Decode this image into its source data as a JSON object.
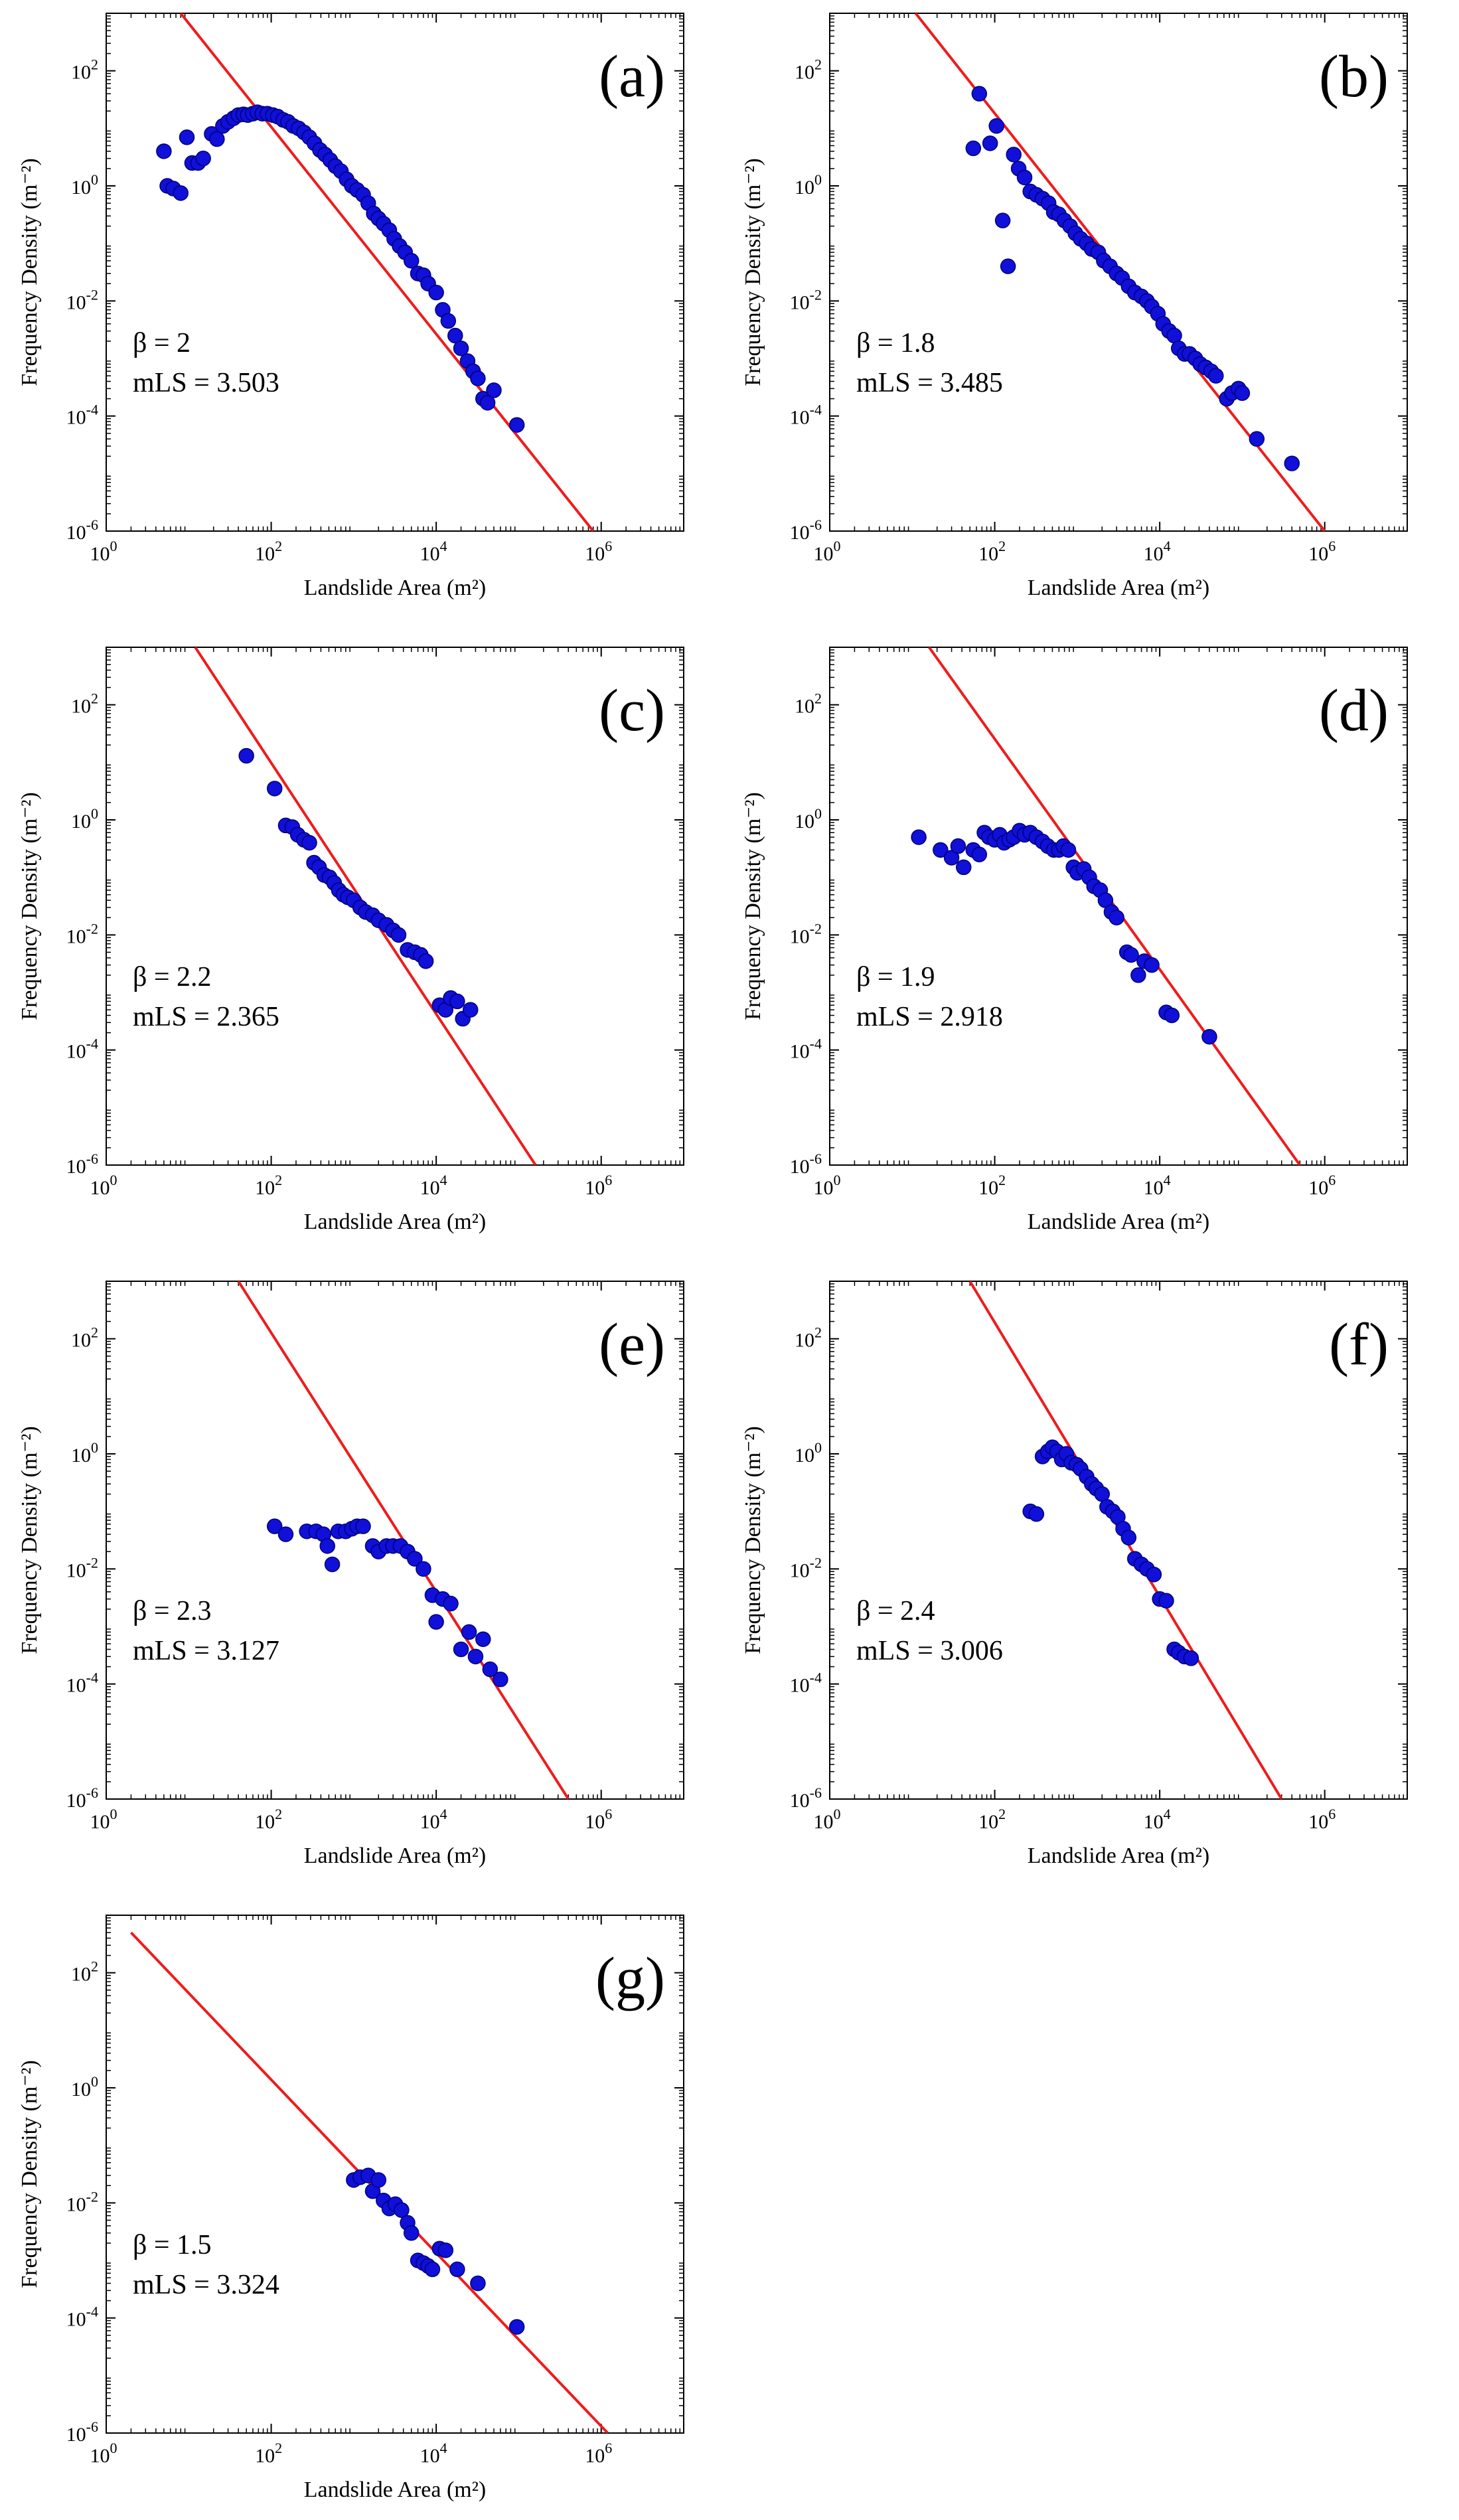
{
  "chart_data": [
    {
      "type": "scatter",
      "panel_label": "(a)",
      "xlabel": "Landslide Area (m²)",
      "ylabel": "Frequency Density (m⁻²)",
      "xscale": "log",
      "yscale": "log",
      "xlim": [
        1,
        10000000
      ],
      "ylim": [
        1e-06,
        1000
      ],
      "x_ticks": [
        "10^0",
        "10^2",
        "10^4",
        "10^6"
      ],
      "y_ticks": [
        "10^-6",
        "10^-4",
        "10^-2",
        "10^0",
        "10^2"
      ],
      "annotations": [
        "β =  2",
        "mLS = 3.503"
      ],
      "fit_line": {
        "x": [
          8,
          800000
        ],
        "y": [
          1000,
          1e-06
        ]
      },
      "points": [
        [
          5,
          4
        ],
        [
          5.5,
          1.0
        ],
        [
          6.5,
          0.9
        ],
        [
          8,
          0.75
        ],
        [
          9.5,
          7
        ],
        [
          11,
          2.5
        ],
        [
          13,
          2.5
        ],
        [
          15,
          3
        ],
        [
          19,
          8
        ],
        [
          22,
          6.5
        ],
        [
          26,
          11
        ],
        [
          30,
          13
        ],
        [
          35,
          15
        ],
        [
          40,
          17
        ],
        [
          46,
          17.5
        ],
        [
          52,
          17
        ],
        [
          60,
          18
        ],
        [
          68,
          19
        ],
        [
          78,
          18
        ],
        [
          90,
          18
        ],
        [
          105,
          17
        ],
        [
          120,
          16
        ],
        [
          140,
          14
        ],
        [
          160,
          13
        ],
        [
          185,
          11
        ],
        [
          215,
          10
        ],
        [
          250,
          8.5
        ],
        [
          290,
          7
        ],
        [
          335,
          5.5
        ],
        [
          390,
          4.2
        ],
        [
          450,
          3.5
        ],
        [
          520,
          2.8
        ],
        [
          600,
          2.2
        ],
        [
          700,
          1.8
        ],
        [
          820,
          1.3
        ],
        [
          950,
          1.0
        ],
        [
          1100,
          0.85
        ],
        [
          1300,
          0.7
        ],
        [
          1500,
          0.5
        ],
        [
          1750,
          0.33
        ],
        [
          2000,
          0.27
        ],
        [
          2300,
          0.22
        ],
        [
          2700,
          0.17
        ],
        [
          3100,
          0.12
        ],
        [
          3600,
          0.09
        ],
        [
          4200,
          0.07
        ],
        [
          5000,
          0.05
        ],
        [
          6000,
          0.03
        ],
        [
          7000,
          0.028
        ],
        [
          8000,
          0.02
        ],
        [
          10000,
          0.014
        ],
        [
          12000,
          0.007
        ],
        [
          14000,
          0.0045
        ],
        [
          17000,
          0.0025
        ],
        [
          20000,
          0.0015
        ],
        [
          24000,
          0.0009
        ],
        [
          28000,
          0.0006
        ],
        [
          32000,
          0.00045
        ],
        [
          37000,
          0.0002
        ],
        [
          42000,
          0.00017
        ],
        [
          50000,
          0.00028
        ],
        [
          95000,
          7e-05
        ]
      ]
    },
    {
      "type": "scatter",
      "panel_label": "(b)",
      "xlabel": "Landslide Area (m²)",
      "ylabel": "Frequency Density (m⁻²)",
      "xscale": "log",
      "yscale": "log",
      "xlim": [
        1,
        10000000
      ],
      "ylim": [
        1e-06,
        1000
      ],
      "x_ticks": [
        "10^0",
        "10^2",
        "10^4",
        "10^6"
      ],
      "y_ticks": [
        "10^-6",
        "10^-4",
        "10^-2",
        "10^0",
        "10^2"
      ],
      "annotations": [
        "β =  1.8",
        "mLS = 3.485"
      ],
      "fit_line": {
        "x": [
          11,
          1000000
        ],
        "y": [
          1000,
          1e-06
        ]
      },
      "points": [
        [
          55,
          4.5
        ],
        [
          65,
          40
        ],
        [
          88,
          5.5
        ],
        [
          105,
          11
        ],
        [
          125,
          0.25
        ],
        [
          145,
          0.04
        ],
        [
          170,
          3.5
        ],
        [
          195,
          2.0
        ],
        [
          230,
          1.4
        ],
        [
          270,
          0.8
        ],
        [
          320,
          0.7
        ],
        [
          380,
          0.6
        ],
        [
          450,
          0.5
        ],
        [
          520,
          0.35
        ],
        [
          600,
          0.32
        ],
        [
          700,
          0.25
        ],
        [
          820,
          0.2
        ],
        [
          950,
          0.15
        ],
        [
          1100,
          0.12
        ],
        [
          1300,
          0.1
        ],
        [
          1500,
          0.08
        ],
        [
          1800,
          0.07
        ],
        [
          2100,
          0.05
        ],
        [
          2500,
          0.04
        ],
        [
          3000,
          0.03
        ],
        [
          3500,
          0.025
        ],
        [
          4200,
          0.018
        ],
        [
          5000,
          0.014
        ],
        [
          6000,
          0.012
        ],
        [
          7000,
          0.01
        ],
        [
          8000,
          0.008
        ],
        [
          9500,
          0.006
        ],
        [
          11000,
          0.004
        ],
        [
          13000,
          0.003
        ],
        [
          15000,
          0.0025
        ],
        [
          17000,
          0.0015
        ],
        [
          20000,
          0.0012
        ],
        [
          23000,
          0.0012
        ],
        [
          27000,
          0.001
        ],
        [
          31000,
          0.0008
        ],
        [
          36000,
          0.0007
        ],
        [
          42000,
          0.0006
        ],
        [
          48000,
          0.0005
        ],
        [
          65000,
          0.0002
        ],
        [
          75000,
          0.00025
        ],
        [
          90000,
          0.0003
        ],
        [
          100000,
          0.00025
        ],
        [
          150000,
          4e-05
        ],
        [
          400000,
          1.5e-05
        ]
      ]
    },
    {
      "type": "scatter",
      "panel_label": "(c)",
      "xlabel": "Landslide Area (m²)",
      "ylabel": "Frequency Density (m⁻²)",
      "xscale": "log",
      "yscale": "log",
      "xlim": [
        1,
        10000000
      ],
      "ylim": [
        1e-06,
        1000
      ],
      "x_ticks": [
        "10^0",
        "10^2",
        "10^4",
        "10^6"
      ],
      "y_ticks": [
        "10^-6",
        "10^-4",
        "10^-2",
        "10^0",
        "10^2"
      ],
      "annotations": [
        "β =  2.2",
        "mLS = 2.365"
      ],
      "fit_line": {
        "x": [
          12,
          160000
        ],
        "y": [
          1000,
          1e-06
        ]
      },
      "points": [
        [
          50,
          13
        ],
        [
          110,
          3.5
        ],
        [
          150,
          0.8
        ],
        [
          180,
          0.75
        ],
        [
          210,
          0.55
        ],
        [
          250,
          0.45
        ],
        [
          290,
          0.4
        ],
        [
          330,
          0.18
        ],
        [
          380,
          0.15
        ],
        [
          440,
          0.11
        ],
        [
          510,
          0.1
        ],
        [
          580,
          0.08
        ],
        [
          660,
          0.06
        ],
        [
          750,
          0.05
        ],
        [
          850,
          0.045
        ],
        [
          1000,
          0.04
        ],
        [
          1200,
          0.03
        ],
        [
          1400,
          0.025
        ],
        [
          1700,
          0.022
        ],
        [
          2000,
          0.018
        ],
        [
          2500,
          0.015
        ],
        [
          3000,
          0.012
        ],
        [
          3500,
          0.01
        ],
        [
          4500,
          0.0055
        ],
        [
          5500,
          0.005
        ],
        [
          6500,
          0.0045
        ],
        [
          7500,
          0.0035
        ],
        [
          11000,
          0.0006
        ],
        [
          13000,
          0.0005
        ],
        [
          15000,
          0.0008
        ],
        [
          18000,
          0.0007
        ],
        [
          21000,
          0.00035
        ],
        [
          26000,
          0.0005
        ]
      ]
    },
    {
      "type": "scatter",
      "panel_label": "(d)",
      "xlabel": "Landslide Area (m²)",
      "ylabel": "Frequency Density (m⁻²)",
      "xscale": "log",
      "yscale": "log",
      "xlim": [
        1,
        10000000
      ],
      "ylim": [
        1e-06,
        1000
      ],
      "x_ticks": [
        "10^0",
        "10^2",
        "10^4",
        "10^6"
      ],
      "y_ticks": [
        "10^-6",
        "10^-4",
        "10^-2",
        "10^0",
        "10^2"
      ],
      "annotations": [
        "β =  1.9",
        "mLS = 2.918"
      ],
      "fit_line": {
        "x": [
          16,
          500000
        ],
        "y": [
          1000,
          1e-06
        ]
      },
      "points": [
        [
          12,
          0.5
        ],
        [
          22,
          0.3
        ],
        [
          30,
          0.22
        ],
        [
          36,
          0.35
        ],
        [
          42,
          0.15
        ],
        [
          55,
          0.3
        ],
        [
          65,
          0.25
        ],
        [
          75,
          0.6
        ],
        [
          85,
          0.5
        ],
        [
          100,
          0.45
        ],
        [
          115,
          0.55
        ],
        [
          130,
          0.4
        ],
        [
          150,
          0.45
        ],
        [
          170,
          0.5
        ],
        [
          200,
          0.65
        ],
        [
          230,
          0.55
        ],
        [
          270,
          0.6
        ],
        [
          320,
          0.5
        ],
        [
          380,
          0.42
        ],
        [
          440,
          0.35
        ],
        [
          520,
          0.3
        ],
        [
          600,
          0.3
        ],
        [
          680,
          0.35
        ],
        [
          780,
          0.3
        ],
        [
          900,
          0.15
        ],
        [
          1000,
          0.12
        ],
        [
          1200,
          0.14
        ],
        [
          1400,
          0.1
        ],
        [
          1600,
          0.07
        ],
        [
          1900,
          0.06
        ],
        [
          2200,
          0.04
        ],
        [
          2600,
          0.025
        ],
        [
          3000,
          0.02
        ],
        [
          4000,
          0.005
        ],
        [
          4500,
          0.0045
        ],
        [
          5500,
          0.002
        ],
        [
          6500,
          0.0035
        ],
        [
          8000,
          0.003
        ],
        [
          12000,
          0.00045
        ],
        [
          14000,
          0.0004
        ],
        [
          40000,
          0.00017
        ]
      ]
    },
    {
      "type": "scatter",
      "panel_label": "(e)",
      "xlabel": "Landslide Area (m²)",
      "ylabel": "Frequency Density (m⁻²)",
      "xscale": "log",
      "yscale": "log",
      "xlim": [
        1,
        10000000
      ],
      "ylim": [
        1e-06,
        1000
      ],
      "x_ticks": [
        "10^0",
        "10^2",
        "10^4",
        "10^6"
      ],
      "y_ticks": [
        "10^-6",
        "10^-4",
        "10^-2",
        "10^0",
        "10^2"
      ],
      "annotations": [
        "β =  2.3",
        "mLS = 3.127"
      ],
      "fit_line": {
        "x": [
          40,
          400000
        ],
        "y": [
          1000,
          1e-06
        ]
      },
      "points": [
        [
          110,
          0.055
        ],
        [
          150,
          0.04
        ],
        [
          270,
          0.045
        ],
        [
          350,
          0.045
        ],
        [
          430,
          0.04
        ],
        [
          480,
          0.025
        ],
        [
          550,
          0.012
        ],
        [
          650,
          0.045
        ],
        [
          800,
          0.045
        ],
        [
          950,
          0.05
        ],
        [
          1100,
          0.055
        ],
        [
          1300,
          0.055
        ],
        [
          1700,
          0.025
        ],
        [
          2000,
          0.02
        ],
        [
          2500,
          0.025
        ],
        [
          3000,
          0.025
        ],
        [
          3700,
          0.025
        ],
        [
          4500,
          0.02
        ],
        [
          5500,
          0.015
        ],
        [
          7000,
          0.01
        ],
        [
          9000,
          0.0035
        ],
        [
          10000,
          0.0012
        ],
        [
          12000,
          0.003
        ],
        [
          15000,
          0.0025
        ],
        [
          20000,
          0.0004
        ],
        [
          25000,
          0.0008
        ],
        [
          30000,
          0.0003
        ],
        [
          37000,
          0.0006
        ],
        [
          45000,
          0.00018
        ],
        [
          60000,
          0.00012
        ]
      ]
    },
    {
      "type": "scatter",
      "panel_label": "(f)",
      "xlabel": "Landslide Area (m²)",
      "ylabel": "Frequency Density (m⁻²)",
      "xscale": "log",
      "yscale": "log",
      "xlim": [
        1,
        10000000
      ],
      "ylim": [
        1e-06,
        1000
      ],
      "x_ticks": [
        "10^0",
        "10^2",
        "10^4",
        "10^6"
      ],
      "y_ticks": [
        "10^-6",
        "10^-4",
        "10^-2",
        "10^0",
        "10^2"
      ],
      "annotations": [
        "β =  2.4",
        "mLS = 3.006"
      ],
      "fit_line": {
        "x": [
          50,
          300000
        ],
        "y": [
          1000,
          1e-06
        ]
      },
      "points": [
        [
          270,
          0.1
        ],
        [
          320,
          0.09
        ],
        [
          380,
          0.9
        ],
        [
          440,
          1.1
        ],
        [
          500,
          1.3
        ],
        [
          570,
          1.1
        ],
        [
          650,
          0.8
        ],
        [
          740,
          1.0
        ],
        [
          850,
          0.7
        ],
        [
          980,
          0.65
        ],
        [
          1100,
          0.55
        ],
        [
          1300,
          0.4
        ],
        [
          1500,
          0.3
        ],
        [
          1700,
          0.25
        ],
        [
          2000,
          0.2
        ],
        [
          2300,
          0.12
        ],
        [
          2700,
          0.1
        ],
        [
          3100,
          0.08
        ],
        [
          3600,
          0.05
        ],
        [
          4200,
          0.035
        ],
        [
          5000,
          0.015
        ],
        [
          6000,
          0.012
        ],
        [
          7000,
          0.01
        ],
        [
          8500,
          0.008
        ],
        [
          10000,
          0.003
        ],
        [
          12000,
          0.0028
        ],
        [
          15000,
          0.0004
        ],
        [
          17000,
          0.00035
        ],
        [
          20000,
          0.0003
        ],
        [
          24000,
          0.00028
        ]
      ]
    },
    {
      "type": "scatter",
      "panel_label": "(g)",
      "xlabel": "Landslide Area (m²)",
      "ylabel": "Frequency Density (m⁻²)",
      "xscale": "log",
      "yscale": "log",
      "xlim": [
        1,
        10000000
      ],
      "ylim": [
        1e-06,
        1000
      ],
      "x_ticks": [
        "10^0",
        "10^2",
        "10^4",
        "10^6"
      ],
      "y_ticks": [
        "10^-6",
        "10^-4",
        "10^-2",
        "10^0",
        "10^2"
      ],
      "annotations": [
        "β =  1.5",
        "mLS = 3.324"
      ],
      "fit_line": {
        "x": [
          2,
          1200000
        ],
        "y": [
          500,
          1e-06
        ]
      },
      "points": [
        [
          1000,
          0.025
        ],
        [
          1200,
          0.028
        ],
        [
          1500,
          0.03
        ],
        [
          1700,
          0.016
        ],
        [
          2000,
          0.025
        ],
        [
          2300,
          0.011
        ],
        [
          2700,
          0.008
        ],
        [
          3200,
          0.0095
        ],
        [
          3800,
          0.0075
        ],
        [
          4500,
          0.0045
        ],
        [
          5000,
          0.003
        ],
        [
          6000,
          0.001
        ],
        [
          7000,
          0.0009
        ],
        [
          8000,
          0.0008
        ],
        [
          9000,
          0.0007
        ],
        [
          11000,
          0.0016
        ],
        [
          13000,
          0.0015
        ],
        [
          18000,
          0.0007
        ],
        [
          32000,
          0.0004
        ],
        [
          95000,
          7e-05
        ]
      ]
    }
  ]
}
